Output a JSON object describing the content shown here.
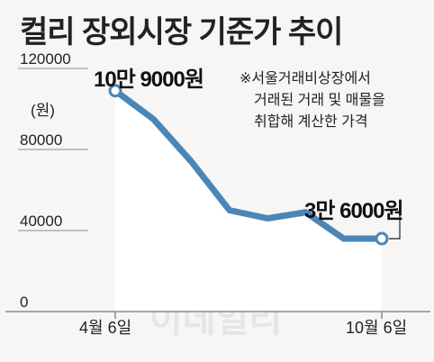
{
  "header": {
    "title": "컬리 장외시장 기준가 추이"
  },
  "annotations": {
    "start_value_label": "10만 9000원",
    "end_value_label": "3만 6000원",
    "note_lines": [
      "※서울거래비상장에서",
      "거래된 거래 및 매물을",
      "취합해 계산한 가격"
    ],
    "watermark": "이데일리"
  },
  "colors": {
    "line": "#4a86b8",
    "area": "#ffffff",
    "axis": "#8a8a8a",
    "background": "#f7f6f4"
  },
  "chart_data": {
    "type": "area",
    "ylabel": "(원)",
    "ylim": [
      0,
      120000
    ],
    "y_ticks": [
      0,
      40000,
      80000,
      120000
    ],
    "y_tick_labels": [
      "0",
      "40000",
      "80000",
      "120000"
    ],
    "x_tick_labels": [
      "4월 6일",
      "10월 6일"
    ],
    "series": [
      {
        "x": [
          0,
          1,
          2,
          3,
          4,
          5,
          6,
          7
        ],
        "values": [
          109000,
          95000,
          74000,
          50000,
          46000,
          49000,
          36000,
          36000
        ]
      }
    ],
    "grid": false
  }
}
